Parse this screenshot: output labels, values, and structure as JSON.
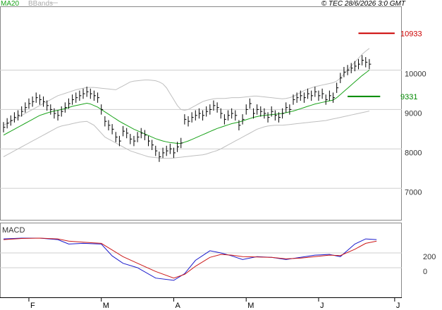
{
  "header": {
    "ma_label": "MA20",
    "bb_label": "BBands",
    "copyright": "© TEC 28/6/2026 3:0 GMT"
  },
  "colors": {
    "price": "#000000",
    "ma": "#1aa31a",
    "bands": "#bfbfbf",
    "grid": "#cfcfcf",
    "macd": "#1a1acc",
    "signal": "#cc1a1a",
    "resistance": "#cc0000",
    "support": "#008800"
  },
  "chart_data": [
    {
      "type": "ohlc",
      "ylim": [
        6200,
        11600
      ],
      "y_ticks": [
        {
          "value": 7000,
          "label": "7000"
        },
        {
          "value": 8000,
          "label": "8000"
        },
        {
          "value": 9000,
          "label": "9000"
        },
        {
          "value": 10000,
          "label": "10000"
        }
      ],
      "x_ticks": [
        {
          "i": 7,
          "label": "F"
        },
        {
          "i": 27,
          "label": "M"
        },
        {
          "i": 47,
          "label": "A"
        },
        {
          "i": 67,
          "label": "M"
        },
        {
          "i": 87,
          "label": "J"
        },
        {
          "i": 108,
          "label": "J"
        }
      ],
      "n_slots": 110,
      "closes": [
        8550,
        8650,
        8720,
        8800,
        8850,
        8950,
        9050,
        9150,
        9200,
        9300,
        9250,
        9200,
        9100,
        9000,
        8900,
        8850,
        8950,
        9050,
        9150,
        9250,
        9300,
        9350,
        9400,
        9450,
        9400,
        9350,
        9300,
        9000,
        8700,
        8600,
        8500,
        8300,
        8200,
        8450,
        8400,
        8250,
        8200,
        8300,
        8400,
        8350,
        8200,
        8100,
        7950,
        7800,
        7900,
        7950,
        8000,
        7900,
        8050,
        8150,
        8750,
        8700,
        8800,
        8850,
        8900,
        8850,
        8950,
        9000,
        9100,
        9050,
        8900,
        8750,
        8850,
        8900,
        8850,
        8600,
        8750,
        9000,
        9150,
        8900,
        9000,
        8950,
        8900,
        8800,
        8950,
        8850,
        8800,
        8900,
        9050,
        9000,
        9250,
        9300,
        9350,
        9300,
        9400,
        9350,
        9450,
        9350,
        9400,
        9250,
        9350,
        9300,
        9550,
        9800,
        9950,
        10000,
        10050,
        10100,
        10150,
        10250,
        10200,
        10150
      ],
      "highs": [
        8680,
        8780,
        8850,
        8930,
        8980,
        9080,
        9180,
        9280,
        9330,
        9430,
        9380,
        9330,
        9230,
        9130,
        9030,
        8980,
        9080,
        9180,
        9280,
        9380,
        9430,
        9480,
        9530,
        9580,
        9530,
        9480,
        9430,
        9130,
        8830,
        8730,
        8630,
        8430,
        8330,
        8580,
        8530,
        8380,
        8330,
        8430,
        8530,
        8480,
        8330,
        8230,
        8080,
        7930,
        8030,
        8080,
        8130,
        8030,
        8180,
        8280,
        8880,
        8830,
        8930,
        8980,
        9030,
        8980,
        9080,
        9130,
        9230,
        9180,
        9030,
        8880,
        8980,
        9030,
        8980,
        8730,
        8880,
        9130,
        9280,
        9030,
        9130,
        9080,
        9030,
        8930,
        9080,
        8980,
        8930,
        9030,
        9180,
        9130,
        9380,
        9430,
        9480,
        9430,
        9530,
        9480,
        9580,
        9480,
        9530,
        9380,
        9480,
        9430,
        9680,
        9930,
        10080,
        10130,
        10180,
        10230,
        10280,
        10380,
        10330,
        10280
      ],
      "lows": [
        8420,
        8520,
        8590,
        8670,
        8720,
        8820,
        8920,
        9020,
        9070,
        9170,
        9120,
        9070,
        8970,
        8870,
        8770,
        8720,
        8820,
        8920,
        9020,
        9120,
        9170,
        9220,
        9270,
        9320,
        9270,
        9220,
        9170,
        8870,
        8570,
        8470,
        8370,
        8170,
        8070,
        8320,
        8270,
        8120,
        8070,
        8170,
        8270,
        8220,
        8070,
        7970,
        7820,
        7670,
        7770,
        7820,
        7870,
        7770,
        7920,
        8020,
        8620,
        8570,
        8670,
        8720,
        8770,
        8720,
        8820,
        8870,
        8970,
        8920,
        8770,
        8620,
        8720,
        8770,
        8720,
        8470,
        8620,
        8870,
        9020,
        8770,
        8870,
        8820,
        8770,
        8670,
        8820,
        8720,
        8670,
        8770,
        8920,
        8870,
        9120,
        9170,
        9220,
        9170,
        9270,
        9220,
        9320,
        9220,
        9270,
        9120,
        9220,
        9170,
        9420,
        9670,
        9820,
        9870,
        9920,
        9970,
        10020,
        10120,
        10070,
        10020
      ],
      "ma20": [
        8350,
        8400,
        8450,
        8500,
        8550,
        8600,
        8650,
        8700,
        8750,
        8800,
        8850,
        8880,
        8910,
        8940,
        8960,
        8980,
        9000,
        9020,
        9050,
        9080,
        9100,
        9120,
        9140,
        9160,
        9140,
        9100,
        9060,
        9000,
        8940,
        8880,
        8820,
        8760,
        8700,
        8650,
        8600,
        8550,
        8500,
        8460,
        8420,
        8380,
        8340,
        8300,
        8260,
        8230,
        8200,
        8180,
        8160,
        8150,
        8140,
        8140,
        8170,
        8200,
        8240,
        8280,
        8320,
        8360,
        8400,
        8440,
        8480,
        8520,
        8550,
        8580,
        8610,
        8640,
        8660,
        8680,
        8710,
        8740,
        8770,
        8800,
        8820,
        8840,
        8850,
        8860,
        8870,
        8880,
        8890,
        8900,
        8920,
        8940,
        8960,
        8990,
        9020,
        9050,
        9080,
        9110,
        9140,
        9160,
        9180,
        9200,
        9220,
        9240,
        9300,
        9380,
        9460,
        9540,
        9620,
        9700,
        9780,
        9860,
        9930,
        10000
      ],
      "upper_band": [
        8600,
        8650,
        8700,
        8750,
        8800,
        8850,
        8900,
        8950,
        9000,
        9050,
        9100,
        9150,
        9200,
        9250,
        9300,
        9350,
        9380,
        9410,
        9440,
        9470,
        9500,
        9520,
        9540,
        9560,
        9560,
        9560,
        9550,
        9540,
        9530,
        9520,
        9510,
        9500,
        9550,
        9600,
        9650,
        9700,
        9720,
        9730,
        9740,
        9750,
        9750,
        9740,
        9730,
        9700,
        9650,
        9550,
        9400,
        9250,
        9100,
        9000,
        8980,
        9000,
        9050,
        9100,
        9150,
        9200,
        9230,
        9250,
        9270,
        9280,
        9280,
        9280,
        9290,
        9300,
        9300,
        9300,
        9310,
        9320,
        9330,
        9340,
        9340,
        9330,
        9320,
        9310,
        9300,
        9290,
        9280,
        9270,
        9280,
        9300,
        9330,
        9380,
        9430,
        9480,
        9520,
        9550,
        9580,
        9600,
        9620,
        9640,
        9660,
        9680,
        9720,
        9800,
        9900,
        10000,
        10100,
        10200,
        10300,
        10400,
        10480,
        10550
      ],
      "lower_band": [
        7800,
        7850,
        7900,
        7950,
        8000,
        8050,
        8100,
        8150,
        8200,
        8250,
        8300,
        8350,
        8400,
        8450,
        8500,
        8550,
        8580,
        8600,
        8620,
        8640,
        8660,
        8680,
        8690,
        8700,
        8650,
        8600,
        8500,
        8400,
        8300,
        8250,
        8200,
        8150,
        8100,
        8050,
        8000,
        7950,
        7920,
        7890,
        7860,
        7830,
        7800,
        7790,
        7780,
        7770,
        7760,
        7760,
        7760,
        7770,
        7780,
        7790,
        7800,
        7810,
        7820,
        7830,
        7840,
        7850,
        7870,
        7900,
        7930,
        7960,
        8000,
        8050,
        8100,
        8150,
        8200,
        8250,
        8300,
        8350,
        8400,
        8450,
        8500,
        8530,
        8560,
        8580,
        8590,
        8600,
        8600,
        8600,
        8610,
        8620,
        8630,
        8640,
        8650,
        8660,
        8670,
        8680,
        8690,
        8700,
        8710,
        8720,
        8740,
        8760,
        8780,
        8800,
        8820,
        8840,
        8860,
        8880,
        8900,
        8920,
        8940,
        8960
      ],
      "levels": [
        {
          "name": "resistance",
          "value": 10933,
          "label": "10933",
          "i_start": 98,
          "i_end": 108
        },
        {
          "name": "support",
          "value": 9331,
          "label": "9331",
          "i_start": 95,
          "i_end": 104
        }
      ]
    },
    {
      "type": "line",
      "title": "MACD",
      "ylim": [
        -400,
        600
      ],
      "y_ticks": [
        {
          "value": 0,
          "label": "0"
        },
        {
          "value": 200,
          "label": "200"
        }
      ],
      "series": [
        {
          "key": "macd",
          "values": [
            [
              0,
              390
            ],
            [
              5,
              400
            ],
            [
              10,
              400
            ],
            [
              15,
              380
            ],
            [
              18,
              320
            ],
            [
              22,
              330
            ],
            [
              27,
              320
            ],
            [
              30,
              160
            ],
            [
              33,
              60
            ],
            [
              37,
              0
            ],
            [
              42,
              -140
            ],
            [
              47,
              -170
            ],
            [
              50,
              -80
            ],
            [
              53,
              100
            ],
            [
              57,
              230
            ],
            [
              60,
              200
            ],
            [
              63,
              160
            ],
            [
              66,
              110
            ],
            [
              70,
              150
            ],
            [
              74,
              140
            ],
            [
              78,
              110
            ],
            [
              82,
              140
            ],
            [
              86,
              170
            ],
            [
              90,
              180
            ],
            [
              93,
              150
            ],
            [
              97,
              320
            ],
            [
              100,
              390
            ],
            [
              103,
              380
            ]
          ]
        },
        {
          "key": "signal",
          "values": [
            [
              0,
              380
            ],
            [
              5,
              395
            ],
            [
              10,
              400
            ],
            [
              15,
              390
            ],
            [
              18,
              360
            ],
            [
              22,
              345
            ],
            [
              27,
              330
            ],
            [
              30,
              240
            ],
            [
              33,
              150
            ],
            [
              37,
              60
            ],
            [
              42,
              -50
            ],
            [
              47,
              -140
            ],
            [
              50,
              -90
            ],
            [
              53,
              20
            ],
            [
              57,
              140
            ],
            [
              60,
              180
            ],
            [
              63,
              170
            ],
            [
              66,
              150
            ],
            [
              70,
              145
            ],
            [
              74,
              140
            ],
            [
              78,
              120
            ],
            [
              82,
              130
            ],
            [
              86,
              150
            ],
            [
              90,
              170
            ],
            [
              93,
              165
            ],
            [
              97,
              250
            ],
            [
              100,
              330
            ],
            [
              103,
              360
            ]
          ]
        }
      ]
    }
  ]
}
